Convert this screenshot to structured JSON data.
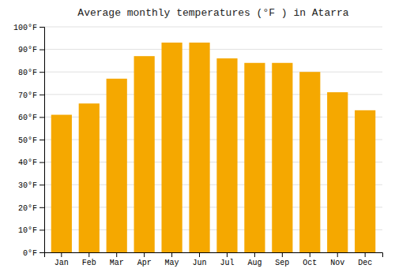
{
  "chart_data": {
    "type": "bar",
    "title": "Average monthly temperatures (°F ) in Atarra",
    "categories": [
      "Jan",
      "Feb",
      "Mar",
      "Apr",
      "May",
      "Jun",
      "Jul",
      "Aug",
      "Sep",
      "Oct",
      "Nov",
      "Dec"
    ],
    "values": [
      61,
      66,
      77,
      87,
      93,
      93,
      86,
      84,
      84,
      80,
      71,
      63
    ],
    "color": "#F5A800",
    "ylim": [
      0,
      100
    ],
    "yticks": [
      {
        "value": 0,
        "label": "0°F"
      },
      {
        "value": 10,
        "label": "10°F"
      },
      {
        "value": 20,
        "label": "20°F"
      },
      {
        "value": 30,
        "label": "30°F"
      },
      {
        "value": 40,
        "label": "40°F"
      },
      {
        "value": 50,
        "label": "50°F"
      },
      {
        "value": 60,
        "label": "60°F"
      },
      {
        "value": 70,
        "label": "70°F"
      },
      {
        "value": 80,
        "label": "80°F"
      },
      {
        "value": 90,
        "label": "90°F"
      },
      {
        "value": 100,
        "label": "100°F"
      }
    ],
    "grid": true
  }
}
